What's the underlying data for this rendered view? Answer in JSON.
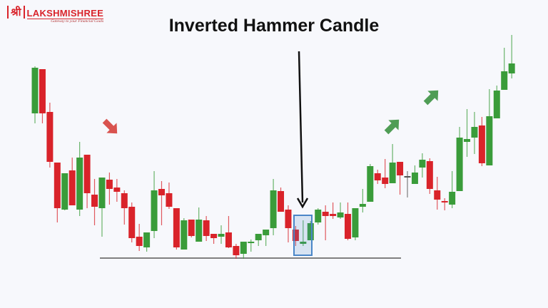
{
  "logo": {
    "mark": "श्री",
    "name": "LAKSHMISHREE",
    "tagline": "Gateway to your Financial Goals"
  },
  "chart_data": {
    "type": "candlestick",
    "title": "Inverted Hammer Candle",
    "xlabel": "",
    "ylabel": "",
    "axes_visible": false,
    "grid": false,
    "colors": {
      "bullish": "#3a9c3a",
      "bearish": "#d9232a",
      "doji": "#555555",
      "highlight": "#4a86c8",
      "support": "#808080",
      "down_arrow": "#d9534f",
      "up_arrow": "#4f9d55"
    },
    "ohlc_fields": [
      "open",
      "high",
      "low",
      "close"
    ],
    "candles": [
      [
        241,
        307,
        227,
        305
      ],
      [
        303,
        303,
        227,
        241
      ],
      [
        243,
        256,
        165,
        173
      ],
      [
        172,
        172,
        88,
        108
      ],
      [
        106,
        157,
        105,
        157
      ],
      [
        161,
        179,
        112,
        112
      ],
      [
        106,
        201,
        97,
        179
      ],
      [
        183,
        183,
        108,
        129
      ],
      [
        127,
        149,
        84,
        110
      ],
      [
        108,
        151,
        68,
        151
      ],
      [
        148,
        158,
        113,
        135
      ],
      [
        137,
        149,
        117,
        131
      ],
      [
        129,
        133,
        85,
        108
      ],
      [
        110,
        116,
        60,
        66
      ],
      [
        68,
        86,
        48,
        55
      ],
      [
        53,
        74,
        47,
        74
      ],
      [
        76,
        160,
        66,
        133
      ],
      [
        135,
        146,
        84,
        126
      ],
      [
        129,
        144,
        107,
        110
      ],
      [
        108,
        108,
        50,
        53
      ],
      [
        50,
        94,
        50,
        91
      ],
      [
        92,
        92,
        67,
        69
      ],
      [
        61,
        109,
        61,
        92
      ],
      [
        91,
        97,
        62,
        69
      ],
      [
        72,
        72,
        58,
        66
      ],
      [
        68,
        84,
        58,
        72
      ],
      [
        74,
        97,
        52,
        53
      ],
      [
        55,
        58,
        37,
        42
      ],
      [
        44,
        61,
        37,
        61
      ],
      [
        59,
        64,
        47,
        61
      ],
      [
        63,
        72,
        55,
        72
      ],
      [
        70,
        78,
        55,
        78
      ],
      [
        80,
        149,
        70,
        133
      ],
      [
        132,
        137,
        103,
        103
      ],
      [
        106,
        112,
        60,
        80
      ],
      [
        78,
        83,
        55,
        62
      ],
      [
        58,
        91,
        55,
        61
      ],
      [
        63,
        90,
        63,
        87
      ],
      [
        88,
        108,
        85,
        106
      ],
      [
        103,
        112,
        63,
        97
      ],
      [
        100,
        116,
        93,
        97
      ],
      [
        95,
        116,
        93,
        102
      ],
      [
        100,
        116,
        63,
        65
      ],
      [
        67,
        108,
        63,
        108
      ],
      [
        110,
        135,
        102,
        114
      ],
      [
        117,
        170,
        117,
        167
      ],
      [
        157,
        162,
        142,
        147
      ],
      [
        151,
        177,
        136,
        142
      ],
      [
        143,
        198,
        143,
        172
      ],
      [
        173,
        173,
        127,
        154
      ],
      [
        153,
        160,
        123,
        152
      ],
      [
        142,
        168,
        142,
        158
      ],
      [
        165,
        185,
        151,
        176
      ],
      [
        174,
        178,
        128,
        135
      ],
      [
        133,
        152,
        106,
        120
      ],
      [
        118,
        122,
        105,
        117
      ],
      [
        113,
        160,
        108,
        131
      ],
      [
        132,
        222,
        132,
        207
      ],
      [
        201,
        247,
        180,
        205
      ],
      [
        207,
        243,
        184,
        222
      ],
      [
        224,
        236,
        167,
        171
      ],
      [
        168,
        275,
        168,
        237
      ],
      [
        234,
        280,
        234,
        273
      ],
      [
        274,
        333,
        274,
        300
      ],
      [
        297,
        351,
        290,
        311
      ]
    ],
    "highlighted_candles": [
      35,
      36,
      37
    ],
    "inverted_hammer_index": 36,
    "support_level": 38,
    "annotations": [
      {
        "type": "arrow",
        "direction": "down-right",
        "meaning": "downtrend"
      },
      {
        "type": "arrow",
        "direction": "up-right",
        "meaning": "uptrend"
      },
      {
        "type": "arrow",
        "direction": "up-right",
        "meaning": "uptrend"
      },
      {
        "type": "arrow",
        "direction": "down",
        "points_to": "inverted hammer"
      }
    ]
  }
}
